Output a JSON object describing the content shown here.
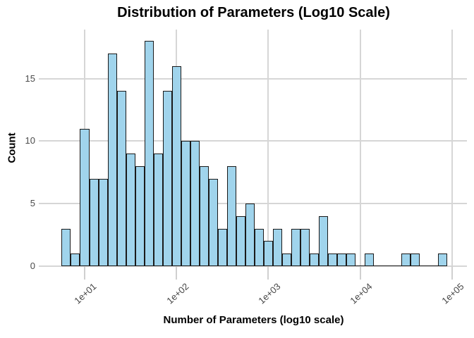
{
  "chart_data": {
    "type": "bar",
    "subtype": "histogram",
    "title": "Distribution of Parameters (Log10 Scale)",
    "xlabel": "Number of Parameters (log10 scale)",
    "ylabel": "Count",
    "x_scale": "log10",
    "grid": true,
    "legend": false,
    "ylim": [
      0,
      18.9
    ],
    "xlim_log10": [
      0.52,
      5.16
    ],
    "bin_log10_start": 0.75,
    "bin_log10_width": 0.1,
    "counts": [
      3,
      1,
      11,
      7,
      7,
      17,
      14,
      9,
      8,
      18,
      9,
      14,
      16,
      10,
      10,
      8,
      7,
      3,
      8,
      4,
      5,
      3,
      2,
      3,
      1,
      3,
      3,
      1,
      4,
      1,
      1,
      1,
      0,
      1,
      0,
      0,
      0,
      1,
      1,
      0,
      0,
      1
    ],
    "yticks": [
      {
        "value": 0,
        "label": "0"
      },
      {
        "value": 5,
        "label": "5"
      },
      {
        "value": 10,
        "label": "10"
      },
      {
        "value": 15,
        "label": "15"
      }
    ],
    "xticks": [
      {
        "log10": 1,
        "label": "1e+01"
      },
      {
        "log10": 2,
        "label": "1e+02"
      },
      {
        "log10": 3,
        "label": "1e+03"
      },
      {
        "log10": 4,
        "label": "1e+04"
      },
      {
        "log10": 5,
        "label": "1e+05"
      }
    ],
    "colors": {
      "bar_fill": "#a0d4ec",
      "bar_border": "#1a1a1a",
      "gridline": "#d6d6d6",
      "tick": "#d0d0d0",
      "axis_text": "#4a4a4a",
      "title_text": "#000000"
    }
  }
}
